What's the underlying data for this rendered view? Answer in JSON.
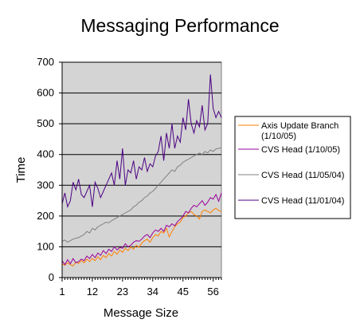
{
  "chart_data": {
    "type": "line",
    "title": "Messaging Performance",
    "xlabel": "Message Size",
    "ylabel": "Time",
    "xlim": [
      1,
      59
    ],
    "ylim": [
      0,
      700
    ],
    "x_ticks": [
      1,
      12,
      23,
      34,
      45,
      56
    ],
    "y_ticks": [
      0,
      100,
      200,
      300,
      400,
      500,
      600,
      700
    ],
    "grid": "horizontal",
    "legend_position": "right",
    "plot_background": "#d4d4d4",
    "series": [
      {
        "name": "Axis Update Branch (1/10/05)",
        "color": "#ff8000",
        "values": [
          45,
          40,
          48,
          42,
          38,
          50,
          46,
          55,
          48,
          60,
          52,
          62,
          55,
          68,
          58,
          72,
          65,
          78,
          70,
          85,
          76,
          90,
          82,
          95,
          88,
          100,
          92,
          105,
          98,
          112,
          120,
          125,
          115,
          130,
          140,
          135,
          150,
          145,
          160,
          132,
          150,
          165,
          175,
          180,
          195,
          200,
          210,
          215,
          205,
          200,
          190,
          215,
          220,
          215,
          210,
          220,
          225,
          218,
          215
        ]
      },
      {
        "name": "CVS Head (1/10/05)",
        "color": "#990099",
        "values": [
          55,
          42,
          58,
          45,
          62,
          48,
          52,
          60,
          55,
          70,
          62,
          75,
          65,
          80,
          72,
          88,
          78,
          92,
          85,
          100,
          90,
          98,
          95,
          110,
          100,
          105,
          115,
          120,
          118,
          125,
          135,
          140,
          130,
          145,
          155,
          150,
          160,
          150,
          170,
          165,
          175,
          168,
          182,
          190,
          200,
          215,
          210,
          225,
          235,
          230,
          240,
          250,
          235,
          245,
          260,
          255,
          270,
          248,
          275
        ]
      },
      {
        "name": "CVS Head (11/05/04)",
        "color": "#808080",
        "values": [
          118,
          122,
          115,
          120,
          125,
          128,
          130,
          135,
          140,
          150,
          145,
          160,
          155,
          165,
          170,
          175,
          180,
          178,
          185,
          190,
          195,
          200,
          205,
          210,
          215,
          220,
          230,
          235,
          245,
          250,
          260,
          265,
          275,
          280,
          290,
          300,
          310,
          320,
          330,
          340,
          350,
          345,
          360,
          365,
          375,
          380,
          385,
          390,
          395,
          400,
          405,
          400,
          410,
          405,
          415,
          410,
          418,
          420,
          422
        ]
      },
      {
        "name": "CVS Head (11/01/04)",
        "color": "#4b0082",
        "values": [
          240,
          275,
          230,
          250,
          310,
          285,
          320,
          270,
          260,
          280,
          300,
          230,
          310,
          290,
          260,
          280,
          300,
          320,
          340,
          300,
          380,
          320,
          420,
          300,
          350,
          340,
          380,
          320,
          360,
          350,
          390,
          345,
          370,
          360,
          395,
          410,
          460,
          380,
          470,
          420,
          500,
          420,
          460,
          440,
          520,
          480,
          580,
          500,
          470,
          510,
          490,
          560,
          480,
          500,
          660,
          550,
          520,
          540,
          520
        ]
      }
    ]
  }
}
